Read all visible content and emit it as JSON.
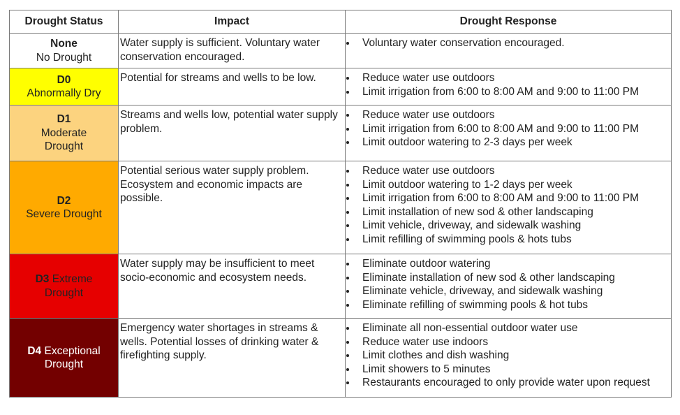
{
  "headers": [
    "Drought Status",
    "Impact",
    "Drought Response"
  ],
  "rows": [
    {
      "code": "None",
      "name": "No Drought",
      "color": "#ffffff",
      "text_color": "#222222",
      "impact": "Water supply is sufficient. Voluntary water conservation encouraged.",
      "responses": [
        "Voluntary water conservation encouraged."
      ]
    },
    {
      "code": "D0",
      "name": "Abnormally Dry",
      "color": "#ffff00",
      "text_color": "#222222",
      "impact": "Potential for streams and wells to be low.",
      "responses": [
        "Reduce water use outdoors",
        "Limit irrigation from 6:00 to 8:00 AM and 9:00 to 11:00 PM"
      ]
    },
    {
      "code": "D1",
      "name": "Moderate Drought",
      "color": "#fcd37f",
      "text_color": "#222222",
      "impact": "Streams and wells low, potential water supply problem.",
      "responses": [
        "Reduce water use outdoors",
        "Limit irrigation from 6:00 to 8:00 AM and 9:00 to 11:00 PM",
        "Limit outdoor watering to 2-3 days per week"
      ]
    },
    {
      "code": "D2",
      "name": "Severe Drought",
      "color": "#ffaa00",
      "text_color": "#222222",
      "impact": "Potential serious water supply problem. Ecosystem and economic impacts are possible.",
      "responses": [
        "Reduce water use outdoors",
        "Limit outdoor watering to 1-2 days per week",
        "Limit irrigation from 6:00 to 8:00 AM and 9:00 to 11:00 PM",
        "Limit installation of new sod & other landscaping",
        "Limit vehicle, driveway, and sidewalk washing",
        "Limit refilling of swimming pools & hots tubs"
      ]
    },
    {
      "code": "D3",
      "name": "Extreme Drought",
      "color": "#e60000",
      "text_color": "#222222",
      "impact": "Water supply may be insufficient to meet socio-economic and ecosystem needs.",
      "responses": [
        "Eliminate outdoor watering",
        "Eliminate installation of new sod & other landscaping",
        "Eliminate vehicle, driveway, and sidewalk washing",
        "Eliminate refilling of swimming pools & hot tubs"
      ]
    },
    {
      "code": "D4",
      "name": "Exceptional Drought",
      "color": "#730000",
      "text_color": "#ffffff",
      "impact": "Emergency water shortages in streams & wells. Potential losses of drinking water & firefighting supply.",
      "responses": [
        "Eliminate all non-essential outdoor water use",
        "Reduce water use indoors",
        "Limit clothes and dish washing",
        "Limit showers to 5 minutes",
        "Restaurants encouraged to only provide water upon request"
      ]
    }
  ]
}
